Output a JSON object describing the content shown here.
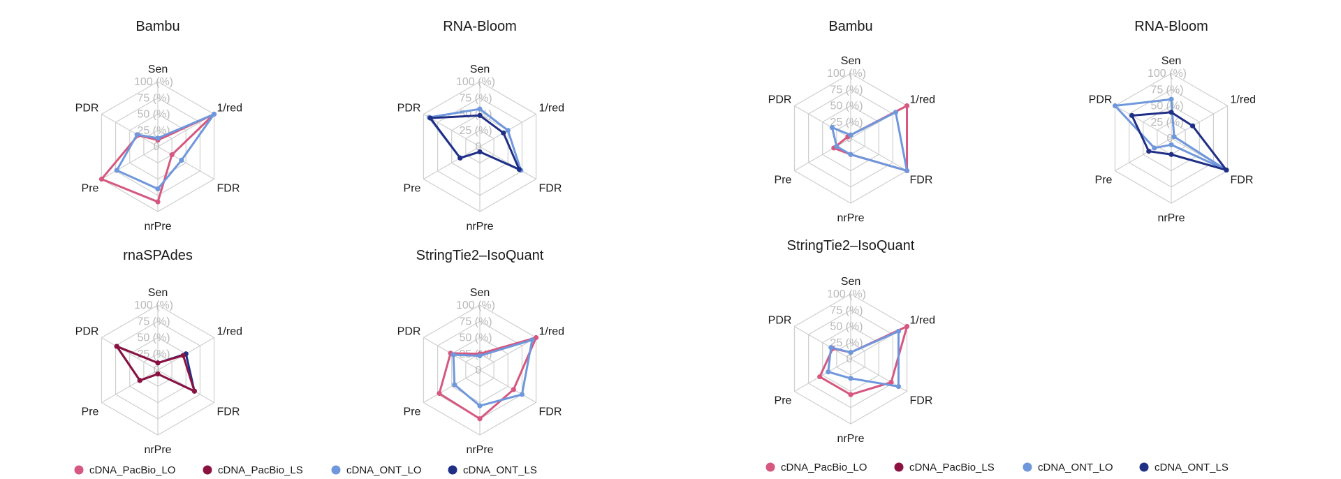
{
  "legend": [
    {
      "name": "cDNA_PacBio_LO",
      "color": "#d6577f"
    },
    {
      "name": "cDNA_PacBio_LS",
      "color": "#8b1240"
    },
    {
      "name": "cDNA_ONT_LO",
      "color": "#6f97dc"
    },
    {
      "name": "cDNA_ONT_LS",
      "color": "#1f2f86"
    }
  ],
  "chart_data": [
    {
      "type": "radar",
      "title": "Bambu",
      "axes": [
        "Sen",
        "1/red",
        "FDR",
        "nrPre",
        "Pre",
        "PDR"
      ],
      "ring_labels": [
        "0",
        "25 (%)",
        "50 (%)",
        "75 (%)",
        "100 (%)"
      ],
      "range": [
        0,
        100
      ],
      "series": [
        {
          "name": "cDNA_PacBio_LO",
          "values": [
            10,
            100,
            25,
            85,
            100,
            35
          ]
        },
        {
          "name": "cDNA_ONT_LO",
          "values": [
            13,
            100,
            42,
            65,
            73,
            37
          ]
        }
      ]
    },
    {
      "type": "radar",
      "title": "RNA-Bloom",
      "axes": [
        "Sen",
        "1/red",
        "FDR",
        "nrPre",
        "Pre",
        "PDR"
      ],
      "ring_labels": [
        "0",
        "25 (%)",
        "50 (%)",
        "75 (%)",
        "100 (%)"
      ],
      "range": [
        0,
        100
      ],
      "series": [
        {
          "name": "cDNA_ONT_LO",
          "values": [
            58,
            50,
            73,
            8,
            35,
            90
          ]
        },
        {
          "name": "cDNA_ONT_LS",
          "values": [
            48,
            42,
            70,
            8,
            35,
            88
          ]
        }
      ]
    },
    {
      "type": "radar",
      "title": "rnaSPAdes",
      "axes": [
        "Sen",
        "1/red",
        "FDR",
        "nrPre",
        "Pre",
        "PDR"
      ],
      "ring_labels": [
        "0",
        "25 (%)",
        "50 (%)",
        "75 (%)",
        "100 (%)"
      ],
      "range": [
        0,
        100
      ],
      "series": [
        {
          "name": "cDNA_ONT_LS",
          "values": [
            11,
            50,
            65,
            6,
            32,
            73
          ]
        },
        {
          "name": "cDNA_PacBio_LS",
          "values": [
            11,
            45,
            65,
            6,
            32,
            73
          ]
        }
      ]
    },
    {
      "type": "radar",
      "title": "StringTie2–IsoQuant",
      "axes": [
        "Sen",
        "1/red",
        "FDR",
        "nrPre",
        "Pre",
        "PDR"
      ],
      "ring_labels": [
        "0",
        "25 (%)",
        "50 (%)",
        "75 (%)",
        "100 (%)"
      ],
      "range": [
        0,
        100
      ],
      "series": [
        {
          "name": "cDNA_PacBio_LO",
          "values": [
            25,
            100,
            60,
            75,
            72,
            52
          ]
        },
        {
          "name": "cDNA_ONT_LO",
          "values": [
            22,
            93,
            75,
            55,
            45,
            47
          ]
        }
      ]
    },
    {
      "type": "radar",
      "title": "Bambu",
      "axes": [
        "Sen",
        "1/red",
        "FDR",
        "nrPre",
        "Pre",
        "PDR"
      ],
      "ring_labels": [
        "0",
        "25 (%)",
        "50 (%)",
        "75 (%)",
        "100 (%)"
      ],
      "range": [
        0,
        100
      ],
      "series": [
        {
          "name": "cDNA_PacBio_LO",
          "values": [
            5,
            100,
            100,
            25,
            30,
            5
          ]
        },
        {
          "name": "cDNA_ONT_LO",
          "values": [
            5,
            80,
            100,
            25,
            25,
            33
          ]
        }
      ]
    },
    {
      "type": "radar",
      "title": "RNA-Bloom",
      "axes": [
        "Sen",
        "1/red",
        "FDR",
        "nrPre",
        "Pre",
        "PDR"
      ],
      "ring_labels": [
        "0",
        "25 (%)",
        "50 (%)",
        "75 (%)",
        "100 (%)"
      ],
      "range": [
        0,
        100
      ],
      "series": [
        {
          "name": "cDNA_ONT_LO",
          "values": [
            60,
            5,
            98,
            10,
            30,
            100
          ]
        },
        {
          "name": "cDNA_ONT_LS",
          "values": [
            40,
            38,
            98,
            25,
            40,
            70
          ]
        }
      ]
    },
    {
      "type": "radar",
      "title": "StringTie2–IsoQuant",
      "axes": [
        "Sen",
        "1/red",
        "FDR",
        "nrPre",
        "Pre",
        "PDR"
      ],
      "ring_labels": [
        "0",
        "25 (%)",
        "50 (%)",
        "75 (%)",
        "100 (%)"
      ],
      "range": [
        0,
        100
      ],
      "series": [
        {
          "name": "cDNA_PacBio_LO",
          "values": [
            10,
            100,
            72,
            55,
            55,
            32
          ]
        },
        {
          "name": "cDNA_ONT_LO",
          "values": [
            10,
            85,
            85,
            30,
            40,
            35
          ]
        }
      ]
    }
  ]
}
